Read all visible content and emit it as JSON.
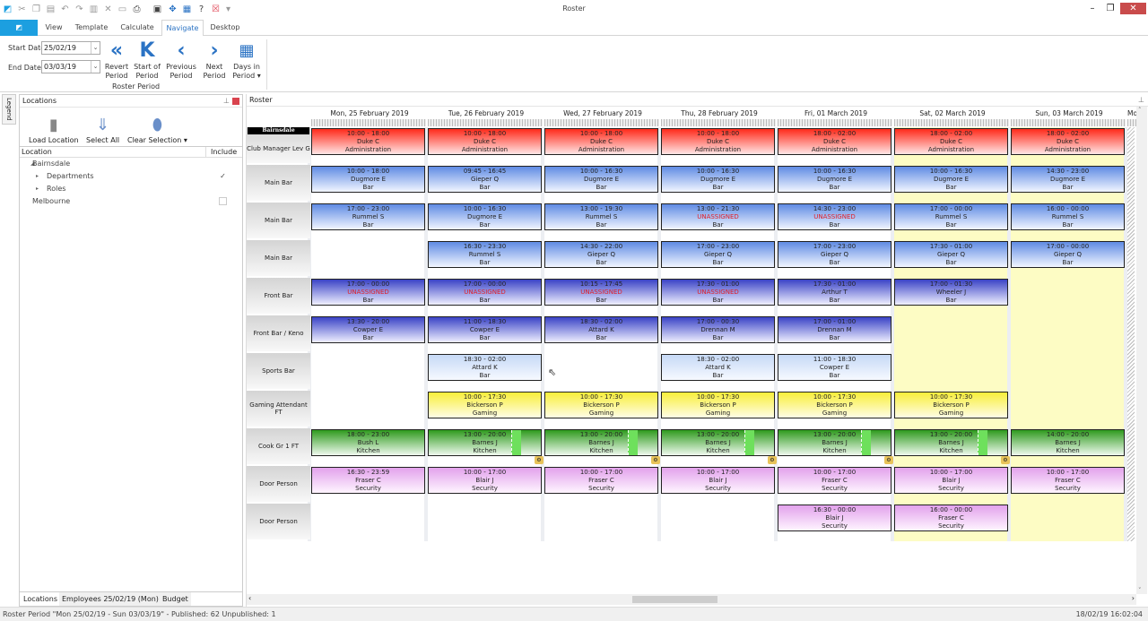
{
  "window": {
    "title": "Roster"
  },
  "tabs": [
    "View",
    "Template",
    "Calculate",
    "Navigate",
    "Desktop"
  ],
  "active_tab": "Navigate",
  "ribbon": {
    "start_date_label": "Start Date",
    "start_date": "25/02/19",
    "end_date_label": "End Date",
    "end_date": "03/03/19",
    "buttons": [
      {
        "l1": "Revert",
        "l2": "Period",
        "icon": "«"
      },
      {
        "l1": "Start of",
        "l2": "Period",
        "icon": "K"
      },
      {
        "l1": "Previous",
        "l2": "Period",
        "icon": "‹"
      },
      {
        "l1": "Next",
        "l2": "Period",
        "icon": "›"
      },
      {
        "l1": "Days in",
        "l2": "Period ▾",
        "icon": "▦"
      }
    ],
    "group_label": "Roster Period"
  },
  "legend_tab": "Legend",
  "locations": {
    "title": "Locations",
    "buttons": [
      "Load Location",
      "Select All",
      "Clear Selection"
    ],
    "col_location": "Location",
    "col_include": "Include",
    "tree": [
      {
        "label": "Bairnsdale",
        "level": 0,
        "arrow": "◢",
        "check": null
      },
      {
        "label": "Departments",
        "level": 1,
        "arrow": "▸",
        "check": true
      },
      {
        "label": "Roles",
        "level": 1,
        "arrow": "▸",
        "check": null
      },
      {
        "label": "Melbourne",
        "level": 0,
        "arrow": "",
        "check": false
      }
    ],
    "bottom_tabs": [
      "Locations",
      "Employees 25/02/19 (Mon)",
      "Budget"
    ]
  },
  "roster": {
    "title": "Roster",
    "location_header": "Bairnsdale",
    "days": [
      "Mon, 25 February 2019",
      "Tue, 26 February 2019",
      "Wed, 27 February 2019",
      "Thu, 28 February 2019",
      "Fri, 01 March 2019",
      "Sat, 02 March 2019",
      "Sun, 03 March 2019",
      "Mon"
    ],
    "weekend_days": [
      5,
      6
    ],
    "colors": {
      "admin": "#ff2a1a",
      "bar": "#5f8be3",
      "front": "#3a43c6",
      "sports": "#c6d9f6",
      "gaming": "#f8ee3a",
      "kitchen": "#2f9a1e",
      "security": "#e2a2ec",
      "weekend": "#fdfcc4",
      "unassigned": "#e0202a"
    },
    "rows": [
      {
        "label": "Club Manager Lev G",
        "cells": [
          {
            "t": "10:00 - 18:00",
            "n": "Duke C",
            "d": "Administration",
            "k": "admin"
          },
          {
            "t": "10:00 - 18:00",
            "n": "Duke C",
            "d": "Administration",
            "k": "admin"
          },
          {
            "t": "10:00 - 18:00",
            "n": "Duke C",
            "d": "Administration",
            "k": "admin"
          },
          {
            "t": "10:00 - 18:00",
            "n": "Duke C",
            "d": "Administration",
            "k": "admin"
          },
          {
            "t": "18:00 - 02:00",
            "n": "Duke C",
            "d": "Administration",
            "k": "admin"
          },
          {
            "t": "18:00 - 02:00",
            "n": "Duke C",
            "d": "Administration",
            "k": "admin"
          },
          {
            "t": "18:00 - 02:00",
            "n": "Duke C",
            "d": "Administration",
            "k": "admin"
          }
        ]
      },
      {
        "label": "Main Bar",
        "cells": [
          {
            "t": "10:00 - 18:00",
            "n": "Dugmore E",
            "d": "Bar",
            "k": "bar"
          },
          {
            "t": "09:45 - 16:45",
            "n": "Gieper Q",
            "d": "Bar",
            "k": "bar"
          },
          {
            "t": "10:00 - 16:30",
            "n": "Dugmore E",
            "d": "Bar",
            "k": "bar"
          },
          {
            "t": "10:00 - 16:30",
            "n": "Dugmore E",
            "d": "Bar",
            "k": "bar"
          },
          {
            "t": "10:00 - 16:30",
            "n": "Dugmore E",
            "d": "Bar",
            "k": "bar"
          },
          {
            "t": "10:00 - 16:30",
            "n": "Dugmore E",
            "d": "Bar",
            "k": "bar"
          },
          {
            "t": "14:30 - 23:00",
            "n": "Dugmore E",
            "d": "Bar",
            "k": "bar"
          }
        ]
      },
      {
        "label": "Main Bar",
        "cells": [
          {
            "t": "17:00 - 23:00",
            "n": "Rummel S",
            "d": "Bar",
            "k": "bar"
          },
          {
            "t": "10:00 - 16:30",
            "n": "Dugmore E",
            "d": "Bar",
            "k": "bar"
          },
          {
            "t": "13:00 - 19:30",
            "n": "Rummel S",
            "d": "Bar",
            "k": "bar"
          },
          {
            "t": "13:00 - 21:30",
            "n": "UNASSIGNED",
            "d": "Bar",
            "k": "bar"
          },
          {
            "t": "14:30 - 23:00",
            "n": "UNASSIGNED",
            "d": "Bar",
            "k": "bar"
          },
          {
            "t": "17:00 - 00:00",
            "n": "Rummel S",
            "d": "Bar",
            "k": "bar"
          },
          {
            "t": "16:00 - 00:00",
            "n": "Rummel S",
            "d": "Bar",
            "k": "bar"
          }
        ]
      },
      {
        "label": "Main Bar",
        "cells": [
          null,
          {
            "t": "16:30 - 23:30",
            "n": "Rummel S",
            "d": "Bar",
            "k": "bar"
          },
          {
            "t": "14:30 - 22:00",
            "n": "Gieper Q",
            "d": "Bar",
            "k": "bar"
          },
          {
            "t": "17:00 - 23:00",
            "n": "Gieper Q",
            "d": "Bar",
            "k": "bar"
          },
          {
            "t": "17:00 - 23:00",
            "n": "Gieper Q",
            "d": "Bar",
            "k": "bar"
          },
          {
            "t": "17:30 - 01:00",
            "n": "Gieper Q",
            "d": "Bar",
            "k": "bar"
          },
          {
            "t": "17:00 - 00:00",
            "n": "Gieper Q",
            "d": "Bar",
            "k": "bar"
          }
        ]
      },
      {
        "label": "Front Bar",
        "cells": [
          {
            "t": "17:00 - 00:00",
            "n": "UNASSIGNED",
            "d": "Bar",
            "k": "front"
          },
          {
            "t": "17:00 - 00:00",
            "n": "UNASSIGNED",
            "d": "Bar",
            "k": "front"
          },
          {
            "t": "10:15 - 17:45",
            "n": "UNASSIGNED",
            "d": "Bar",
            "k": "front"
          },
          {
            "t": "17:30 - 01:00",
            "n": "UNASSIGNED",
            "d": "Bar",
            "k": "front"
          },
          {
            "t": "17:30 - 01:00",
            "n": "Arthur T",
            "d": "Bar",
            "k": "front"
          },
          {
            "t": "17:00 - 01:30",
            "n": "Wheeler J",
            "d": "Bar",
            "k": "front"
          },
          null
        ]
      },
      {
        "label": "Front Bar / Keno",
        "cells": [
          {
            "t": "13:30 - 20:00",
            "n": "Cowper E",
            "d": "Bar",
            "k": "front"
          },
          {
            "t": "11:00 - 18:30",
            "n": "Cowper E",
            "d": "Bar",
            "k": "front"
          },
          {
            "t": "18:30 - 02:00",
            "n": "Attard K",
            "d": "Bar",
            "k": "front"
          },
          {
            "t": "17:00 - 00:30",
            "n": "Drennan M",
            "d": "Bar",
            "k": "front"
          },
          {
            "t": "17:00 - 01:00",
            "n": "Drennan M",
            "d": "Bar",
            "k": "front"
          },
          null,
          null
        ]
      },
      {
        "label": "Sports Bar",
        "cells": [
          null,
          {
            "t": "18:30 - 02:00",
            "n": "Attard K",
            "d": "Bar",
            "k": "sports"
          },
          null,
          {
            "t": "18:30 - 02:00",
            "n": "Attard K",
            "d": "Bar",
            "k": "sports"
          },
          {
            "t": "11:00 - 18:30",
            "n": "Cowper E",
            "d": "Bar",
            "k": "sports"
          },
          null,
          null
        ]
      },
      {
        "label": "Gaming Attendant FT",
        "cells": [
          null,
          {
            "t": "10:00 - 17:30",
            "n": "Bickerson P",
            "d": "Gaming",
            "k": "gaming"
          },
          {
            "t": "10:00 - 17:30",
            "n": "Bickerson P",
            "d": "Gaming",
            "k": "gaming"
          },
          {
            "t": "10:00 - 17:30",
            "n": "Bickerson P",
            "d": "Gaming",
            "k": "gaming"
          },
          {
            "t": "10:00 - 17:30",
            "n": "Bickerson P",
            "d": "Gaming",
            "k": "gaming"
          },
          {
            "t": "10:00 - 17:30",
            "n": "Bickerson P",
            "d": "Gaming",
            "k": "gaming"
          },
          null
        ]
      },
      {
        "label": "Cook Gr 1 FT",
        "cells": [
          {
            "t": "18:00 - 23:00",
            "n": "Bush L",
            "d": "Kitchen",
            "k": "kitchen"
          },
          {
            "t": "13:00 - 20:00",
            "n": "Barnes J",
            "d": "Kitchen",
            "k": "kitchen",
            "brk": true
          },
          {
            "t": "13:00 - 20:00",
            "n": "Barnes J",
            "d": "Kitchen",
            "k": "kitchen",
            "brk": true
          },
          {
            "t": "13:00 - 20:00",
            "n": "Barnes J",
            "d": "Kitchen",
            "k": "kitchen",
            "brk": true
          },
          {
            "t": "13:00 - 20:00",
            "n": "Barnes J",
            "d": "Kitchen",
            "k": "kitchen",
            "brk": true
          },
          {
            "t": "13:00 - 20:00",
            "n": "Barnes J",
            "d": "Kitchen",
            "k": "kitchen",
            "brk": true
          },
          {
            "t": "14:00 - 20:00",
            "n": "Barnes J",
            "d": "Kitchen",
            "k": "kitchen"
          }
        ]
      },
      {
        "label": "Door Person",
        "cells": [
          {
            "t": "16:30 - 23:59",
            "n": "Fraser C",
            "d": "Security",
            "k": "security"
          },
          {
            "t": "10:00 - 17:00",
            "n": "Blair J",
            "d": "Security",
            "k": "security"
          },
          {
            "t": "10:00 - 17:00",
            "n": "Fraser C",
            "d": "Security",
            "k": "security"
          },
          {
            "t": "10:00 - 17:00",
            "n": "Blair J",
            "d": "Security",
            "k": "security"
          },
          {
            "t": "10:00 - 17:00",
            "n": "Fraser C",
            "d": "Security",
            "k": "security"
          },
          {
            "t": "10:00 - 17:00",
            "n": "Blair J",
            "d": "Security",
            "k": "security"
          },
          {
            "t": "10:00 - 17:00",
            "n": "Fraser C",
            "d": "Security",
            "k": "security"
          }
        ]
      },
      {
        "label": "Door Person",
        "cells": [
          null,
          null,
          null,
          null,
          {
            "t": "16:30 - 00:00",
            "n": "Blair J",
            "d": "Security",
            "k": "security"
          },
          {
            "t": "16:00 - 00:00",
            "n": "Fraser C",
            "d": "Security",
            "k": "security"
          },
          null
        ]
      }
    ]
  },
  "status": {
    "text": "Roster Period  \"Mon 25/02/19 - Sun 03/03/19\" - Published: 62 Unpublished: 1",
    "datetime": "18/02/19 16:02:04"
  }
}
